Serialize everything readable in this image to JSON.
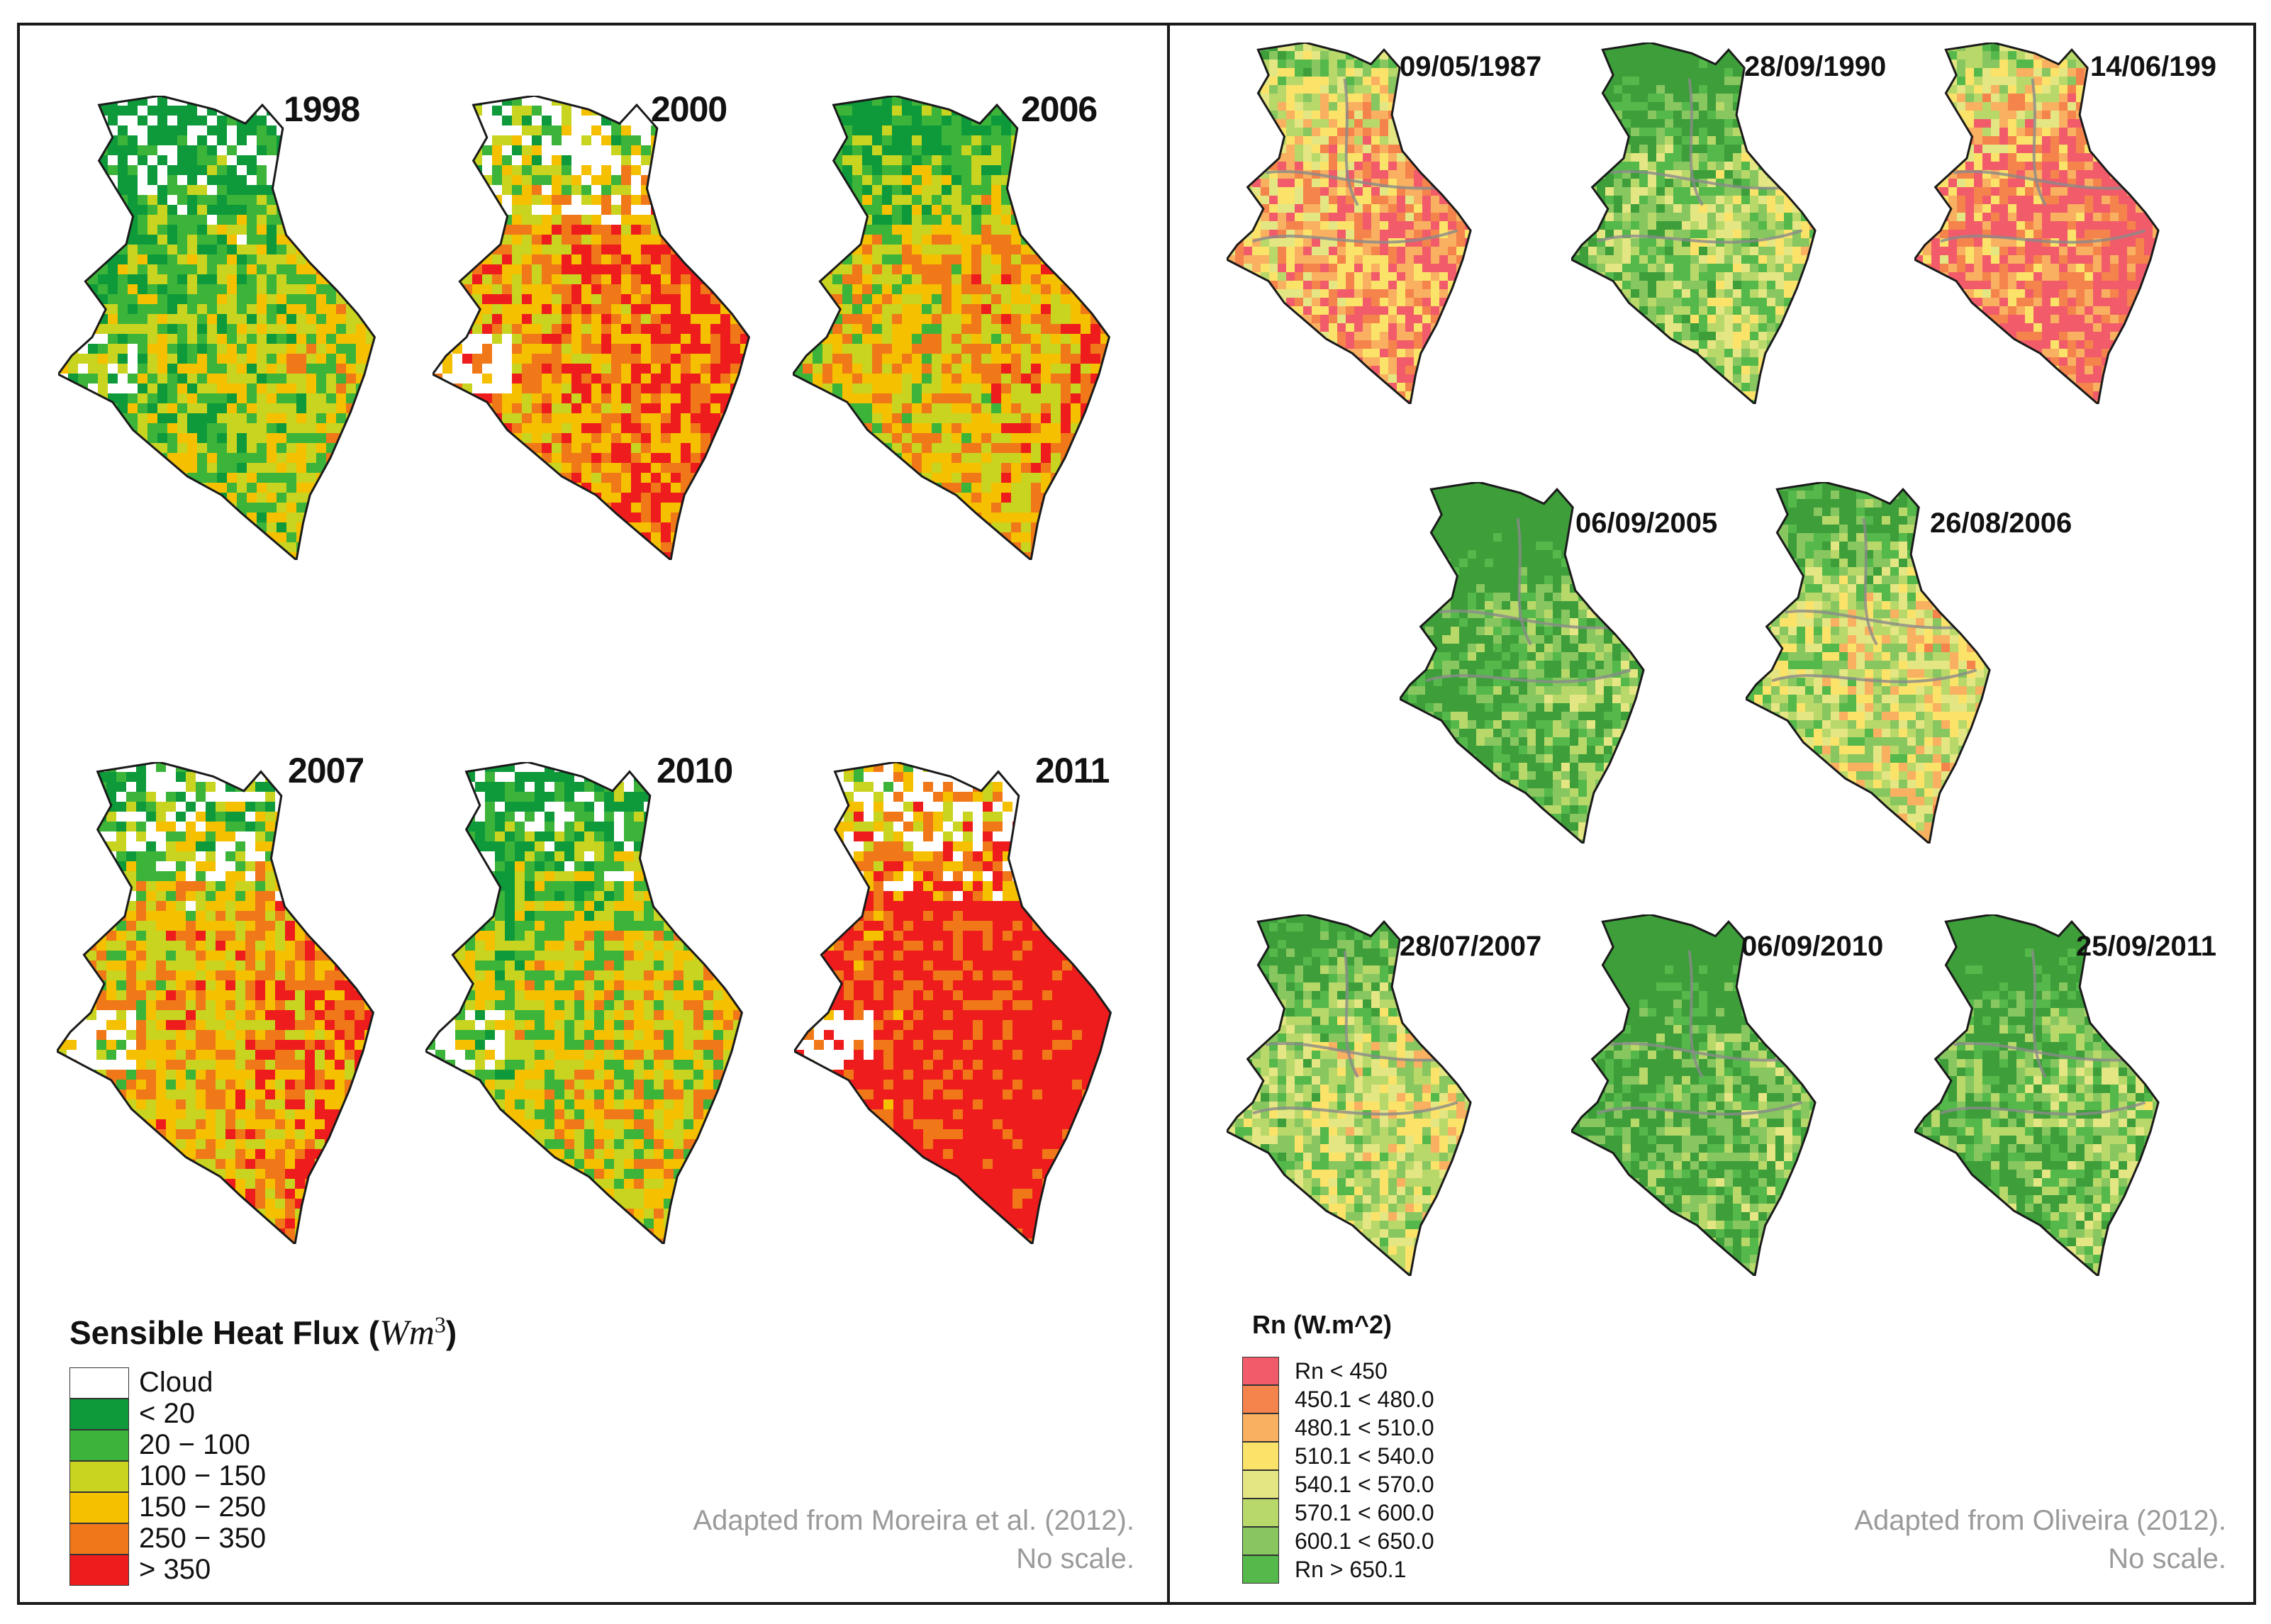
{
  "left_panel": {
    "maps": [
      {
        "label": "1998",
        "cloud": 0.25,
        "heat": 0.35
      },
      {
        "label": "2000",
        "cloud": 0.5,
        "heat": 0.7
      },
      {
        "label": "2006",
        "cloud": 0.0,
        "heat": 0.55
      },
      {
        "label": "2007",
        "cloud": 0.4,
        "heat": 0.6
      },
      {
        "label": "2010",
        "cloud": 0.3,
        "heat": 0.45
      },
      {
        "label": "2011",
        "cloud": 0.45,
        "heat": 0.95
      }
    ],
    "legend": {
      "title": "Sensible Heat Flux (",
      "unit": "Wm",
      "exponent": "3",
      "close": ")",
      "items": [
        {
          "label": "Cloud",
          "color": "#ffffff"
        },
        {
          "label": "< 20",
          "color": "#0e9a3a"
        },
        {
          "label": "20 − 100",
          "color": "#3cb43a"
        },
        {
          "label": "100 − 150",
          "color": "#c8d420"
        },
        {
          "label": "150 − 250",
          "color": "#f5c000"
        },
        {
          "label": "250 − 350",
          "color": "#f07818"
        },
        {
          "label": "> 350",
          "color": "#ee1c1c"
        }
      ]
    },
    "credit_line1": "Adapted from Moreira et al. (2012).",
    "credit_line2": "No scale."
  },
  "right_panel": {
    "maps": [
      {
        "label": "09/05/1987",
        "heat": 0.75
      },
      {
        "label": "28/09/1990",
        "heat": 0.3
      },
      {
        "label": "14/06/199",
        "heat": 0.85
      },
      {
        "label": "06/09/2005",
        "heat": 0.15
      },
      {
        "label": "26/08/2006",
        "heat": 0.45
      },
      {
        "label": "28/07/2007",
        "heat": 0.4
      },
      {
        "label": "06/09/2010",
        "heat": 0.15
      },
      {
        "label": "25/09/2011",
        "heat": 0.2
      }
    ],
    "legend": {
      "title": "Rn (W.m^2)",
      "items": [
        {
          "label": "Rn < 450",
          "color": "#f25c6a"
        },
        {
          "label": "450.1 < 480.0",
          "color": "#f5844c"
        },
        {
          "label": "480.1 < 510.0",
          "color": "#f9b060"
        },
        {
          "label": "510.1 < 540.0",
          "color": "#fbe36a"
        },
        {
          "label": "540.1 < 570.0",
          "color": "#e3e682"
        },
        {
          "label": "570.1 < 600.0",
          "color": "#b8d86a"
        },
        {
          "label": "600.1 < 650.0",
          "color": "#88c660"
        },
        {
          "label": "Rn > 650.1",
          "color": "#55b84a"
        }
      ]
    },
    "credit_line1": "Adapted from Oliveira (2012).",
    "credit_line2": "No scale."
  }
}
